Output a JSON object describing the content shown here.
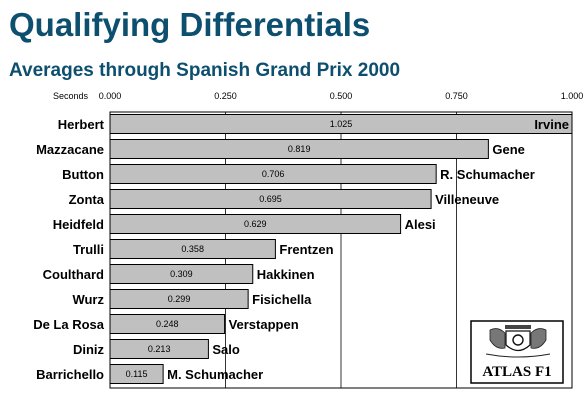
{
  "title": "Qualifying Differentials",
  "subtitle": "Averages through Spanish Grand Prix 2000",
  "logo": {
    "text": "ATLAS F1",
    "icon": "atlas-f1-crest-icon"
  },
  "colors": {
    "title": "#0d4f6e",
    "bar_fill": "#c0c0c0",
    "bar_stroke": "#000000",
    "grid": "#000000"
  },
  "chart_data": {
    "type": "bar",
    "orientation": "horizontal",
    "title": "Qualifying Differentials",
    "subtitle": "Averages through Spanish Grand Prix 2000",
    "xlabel": "Seconds",
    "xlim": [
      0,
      1
    ],
    "x_ticks": [
      "0.000",
      "0.250",
      "0.500",
      "0.750",
      "1.000"
    ],
    "grid": true,
    "bars": [
      {
        "driver": "Herbert",
        "teammate": "Irvine",
        "value": 1.025,
        "label": "1.025"
      },
      {
        "driver": "Mazzacane",
        "teammate": "Gene",
        "value": 0.819,
        "label": "0.819"
      },
      {
        "driver": "Button",
        "teammate": "R. Schumacher",
        "value": 0.706,
        "label": "0.706"
      },
      {
        "driver": "Zonta",
        "teammate": "Villeneuve",
        "value": 0.695,
        "label": "0.695"
      },
      {
        "driver": "Heidfeld",
        "teammate": "Alesi",
        "value": 0.629,
        "label": "0.629"
      },
      {
        "driver": "Trulli",
        "teammate": "Frentzen",
        "value": 0.358,
        "label": "0.358"
      },
      {
        "driver": "Coulthard",
        "teammate": "Hakkinen",
        "value": 0.309,
        "label": "0.309"
      },
      {
        "driver": "Wurz",
        "teammate": "Fisichella",
        "value": 0.299,
        "label": "0.299"
      },
      {
        "driver": "De La Rosa",
        "teammate": "Verstappen",
        "value": 0.248,
        "label": "0.248"
      },
      {
        "driver": "Diniz",
        "teammate": "Salo",
        "value": 0.213,
        "label": "0.213"
      },
      {
        "driver": "Barrichello",
        "teammate": "M. Schumacher",
        "value": 0.115,
        "label": "0.115"
      }
    ]
  }
}
